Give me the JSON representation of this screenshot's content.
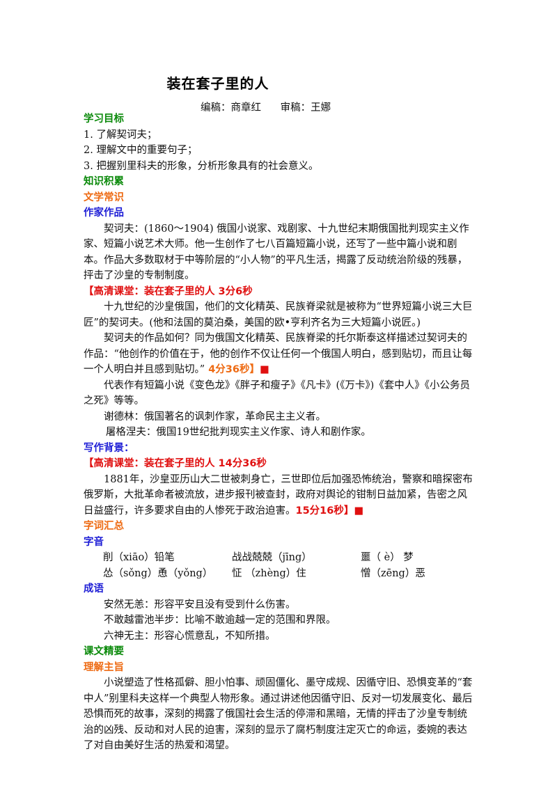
{
  "doc": {
    "title": "装在套子里的人",
    "editors": "编稿：商章红      审稿：王娜"
  },
  "goals": {
    "heading": "学习目标",
    "items": [
      "1.  了解契诃夫；",
      "2.  理解文中的重要句子；",
      "3.  把握别里科夫的形象，分析形象具有的社会意义。"
    ]
  },
  "knowledge": {
    "heading": "知识积累",
    "literary": {
      "heading": "文学常识",
      "works": {
        "heading": "作家作品",
        "p1": "契诃夫：(1860～1904) 俄国小说家、戏剧家、十九世纪末期俄国批判现实主义作家、短篇小说艺术大师。他一生创作了七八百篇短篇小说，还写了一些中篇小说和剧本。作品大多数取材于中等阶层的“小人物”的平凡生活，揭露了反动统治阶级的残暴，抨击了沙皇的专制制度。",
        "video1": "【高清课堂：装在套子里的人 3分6秒",
        "p2": "十九世纪的沙皇俄国，他们的文化精英、民族脊梁就是被称为“世界短篇小说三大巨匠”的契诃夫。(他和法国的莫泊桑，美国的欧•亨利齐名为三大短篇小说匠。)",
        "p3": "契诃夫的作品如何？同为俄国文化精英、民族脊梁的托尔斯泰这样描述过契诃夫的作品：“他创作的价值在于，他的创作不仅让任何一个俄国人明白，感到贴切，而且让每一个人明白并且感到贴切。”",
        "p3_time": " 4分36秒】",
        "p3_end": "■",
        "p4": "代表作有短篇小说《变色龙》《胖子和瘦子》《凡卡》(《万卡》)《套中人》《小公务员之死》等等。",
        "p5": "谢德林：俄国著名的讽刺作家，革命民主主义者。",
        "p6": "屠格涅夫：俄国19世纪批判现实主义作家、诗人和剧作家。"
      },
      "background": {
        "heading": "写作背景：",
        "video": "【高清课堂：装在套子里的人 14分36秒",
        "p1": "1881年，沙皇亚历山大二世被刺身亡，三世即位后加强恐怖统治，警察和暗探密布俄罗斯，大批革命者被流放，进步报刊被查封，政府对舆论的钳制日益加紧，告密之风日益盛行，许多要求自由的人惨死于政治迫害。",
        "p1_time": "15分16秒】",
        "p1_end": "■"
      }
    },
    "vocab": {
      "heading": "字词汇总",
      "pron": {
        "heading": "字音",
        "row1": [
          "削（xiāo）铅笔",
          "战战兢兢（jīng）",
          "噩（ è） 梦"
        ],
        "row2": [
          "怂（sǒng）恿（yǒng）",
          "怔 （zhèng）住",
          "憎（zēng）恶"
        ]
      },
      "idioms": {
        "heading": "成语",
        "items": [
          "安然无恙：形容平安且没有受到什么伤害。",
          "不敢越雷池半步：比喻不敢逾越一定的范围和界限。",
          "六神无主：形容心慌意乱，不知所措。"
        ]
      }
    }
  },
  "essentials": {
    "heading": "课文精要",
    "theme": {
      "heading": "理解主旨",
      "p1": "小说塑造了性格孤僻、胆小怕事、顽固僵化、墨守成规、因循守旧、恐惧变革的“套中人”别里科夫这样一个典型人物形象。通过讲述他因循守旧、反对一切发展变化、最后恐惧而死的故事，深刻的揭露了俄国社会生活的停滞和黑暗，无情的抨击了沙皇专制统治的凶残、反动和对人民的迫害，深刻的显示了腐朽制度注定灭亡的命运，委婉的表达了对自由美好生活的热爱和渴望。"
    }
  }
}
